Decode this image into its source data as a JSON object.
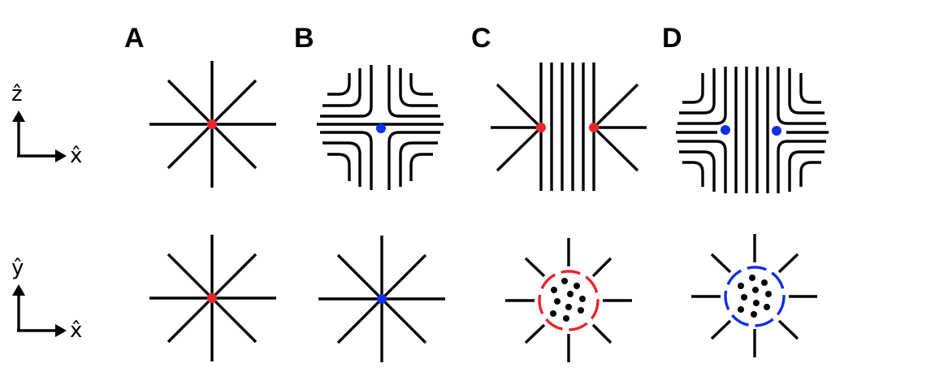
{
  "panels": [
    {
      "label": "A"
    },
    {
      "label": "B"
    },
    {
      "label": "C"
    },
    {
      "label": "D"
    }
  ],
  "axes": {
    "top": {
      "vertical": "ẑ",
      "horizontal": "x̂"
    },
    "bottom": {
      "vertical": "ŷ",
      "horizontal": "x̂"
    }
  },
  "colors": {
    "red": "#e8262b",
    "blue": "#1030e6",
    "line": "#000000"
  }
}
